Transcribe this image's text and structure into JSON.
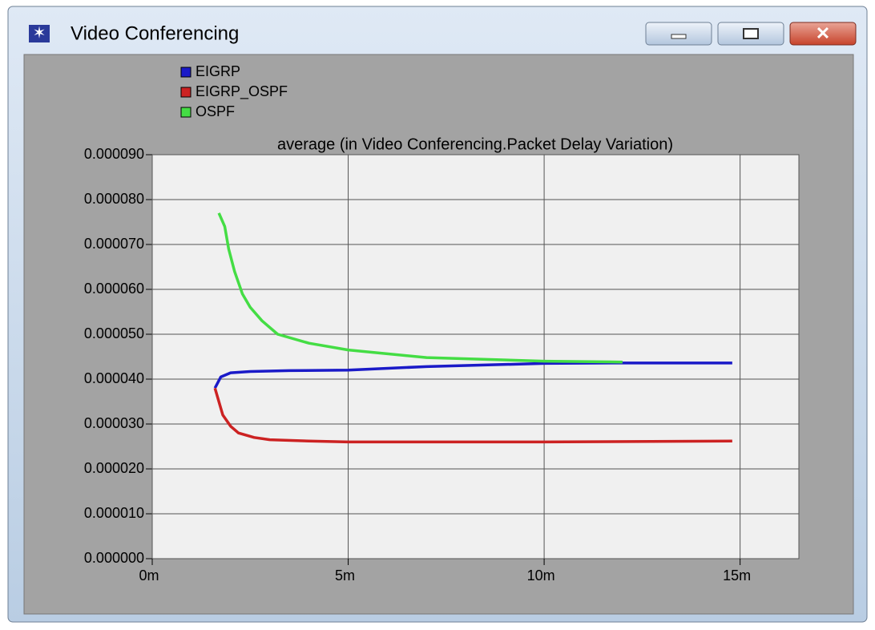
{
  "window": {
    "title": "Video Conferencing"
  },
  "chart_data": {
    "type": "line",
    "title": "average (in Video Conferencing.Packet Delay Variation)",
    "series": [
      {
        "name": "EIGRP",
        "color": "#1a1ac8",
        "x": [
          1.6,
          1.75,
          2.0,
          2.5,
          3.5,
          5,
          7,
          10,
          12,
          14.8
        ],
        "values": [
          3.8e-05,
          4.05e-05,
          4.14e-05,
          4.17e-05,
          4.19e-05,
          4.2e-05,
          4.28e-05,
          4.35e-05,
          4.36e-05,
          4.36e-05
        ]
      },
      {
        "name": "EIGRP_OSPF",
        "color": "#cc2222",
        "x": [
          1.6,
          1.7,
          1.8,
          2.0,
          2.2,
          2.6,
          3,
          4,
          5,
          10,
          14.8
        ],
        "values": [
          3.8e-05,
          3.5e-05,
          3.2e-05,
          2.95e-05,
          2.8e-05,
          2.7e-05,
          2.65e-05,
          2.62e-05,
          2.6e-05,
          2.6e-05,
          2.62e-05
        ]
      },
      {
        "name": "OSPF",
        "color": "#44dd44",
        "x": [
          1.7,
          1.85,
          1.95,
          2.1,
          2.3,
          2.5,
          2.8,
          3.2,
          4,
          5,
          7,
          10,
          12
        ],
        "values": [
          7.7e-05,
          7.4e-05,
          6.9e-05,
          6.4e-05,
          5.9e-05,
          5.6e-05,
          5.3e-05,
          5e-05,
          4.8e-05,
          4.65e-05,
          4.48e-05,
          4.4e-05,
          4.38e-05
        ]
      }
    ],
    "xlim": [
      0,
      16.5
    ],
    "xticks": [
      {
        "value": 0,
        "label": "0m"
      },
      {
        "value": 5,
        "label": "5m"
      },
      {
        "value": 10,
        "label": "10m"
      },
      {
        "value": 15,
        "label": "15m"
      }
    ],
    "ylim": [
      0,
      9e-05
    ],
    "yticks": [
      {
        "value": 0,
        "label": "0.000000"
      },
      {
        "value": 1e-05,
        "label": "0.000010"
      },
      {
        "value": 2e-05,
        "label": "0.000020"
      },
      {
        "value": 3e-05,
        "label": "0.000030"
      },
      {
        "value": 4e-05,
        "label": "0.000040"
      },
      {
        "value": 5e-05,
        "label": "0.000050"
      },
      {
        "value": 6e-05,
        "label": "0.000060"
      },
      {
        "value": 7e-05,
        "label": "0.000070"
      },
      {
        "value": 8e-05,
        "label": "0.000080"
      },
      {
        "value": 9e-05,
        "label": "0.000090"
      }
    ],
    "grid": true
  }
}
